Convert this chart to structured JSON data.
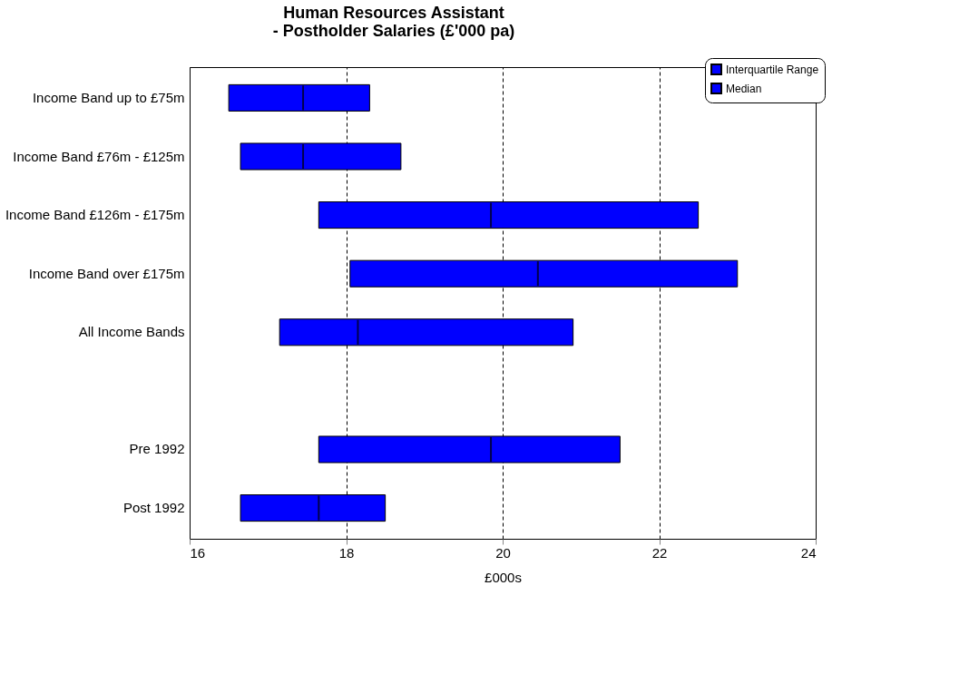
{
  "chart_data": {
    "type": "box",
    "orientation": "horizontal",
    "title": [
      "Human Resources Assistant",
      "- Postholder Salaries (£'000 pa)"
    ],
    "xlabel": "£000s",
    "categories": [
      "Income Band up to £75m",
      "Income Band £76m - £125m",
      "Income Band £126m - £175m",
      "Income Band over £175m",
      "All Income Bands",
      null,
      "Pre 1992",
      "Post 1992"
    ],
    "series": [
      {
        "name": "Interquartile Range",
        "color": "#0000ff",
        "boxes": [
          {
            "low": 16.5,
            "q1": 16.5,
            "median": 17.45,
            "q3": 18.3,
            "high": 18.3
          },
          {
            "low": 16.65,
            "q1": 16.65,
            "median": 17.45,
            "q3": 18.7,
            "high": 18.7
          },
          {
            "low": 17.65,
            "q1": 17.65,
            "median": 19.85,
            "q3": 22.5,
            "high": 22.5
          },
          {
            "low": 18.05,
            "q1": 18.05,
            "median": 20.45,
            "q3": 23.0,
            "high": 23.0
          },
          {
            "low": 17.15,
            "q1": 17.15,
            "median": 18.15,
            "q3": 20.9,
            "high": 20.9
          },
          null,
          {
            "low": 17.65,
            "q1": 17.65,
            "median": 19.85,
            "q3": 21.5,
            "high": 21.5
          },
          {
            "low": 16.65,
            "q1": 16.65,
            "median": 17.65,
            "q3": 18.5,
            "high": 18.5
          }
        ]
      }
    ],
    "annotations": [
      "Median"
    ],
    "xlim": [
      16,
      24
    ],
    "xticks": [
      16,
      18,
      20,
      22,
      24
    ],
    "grid": "x",
    "legend": "top right"
  }
}
